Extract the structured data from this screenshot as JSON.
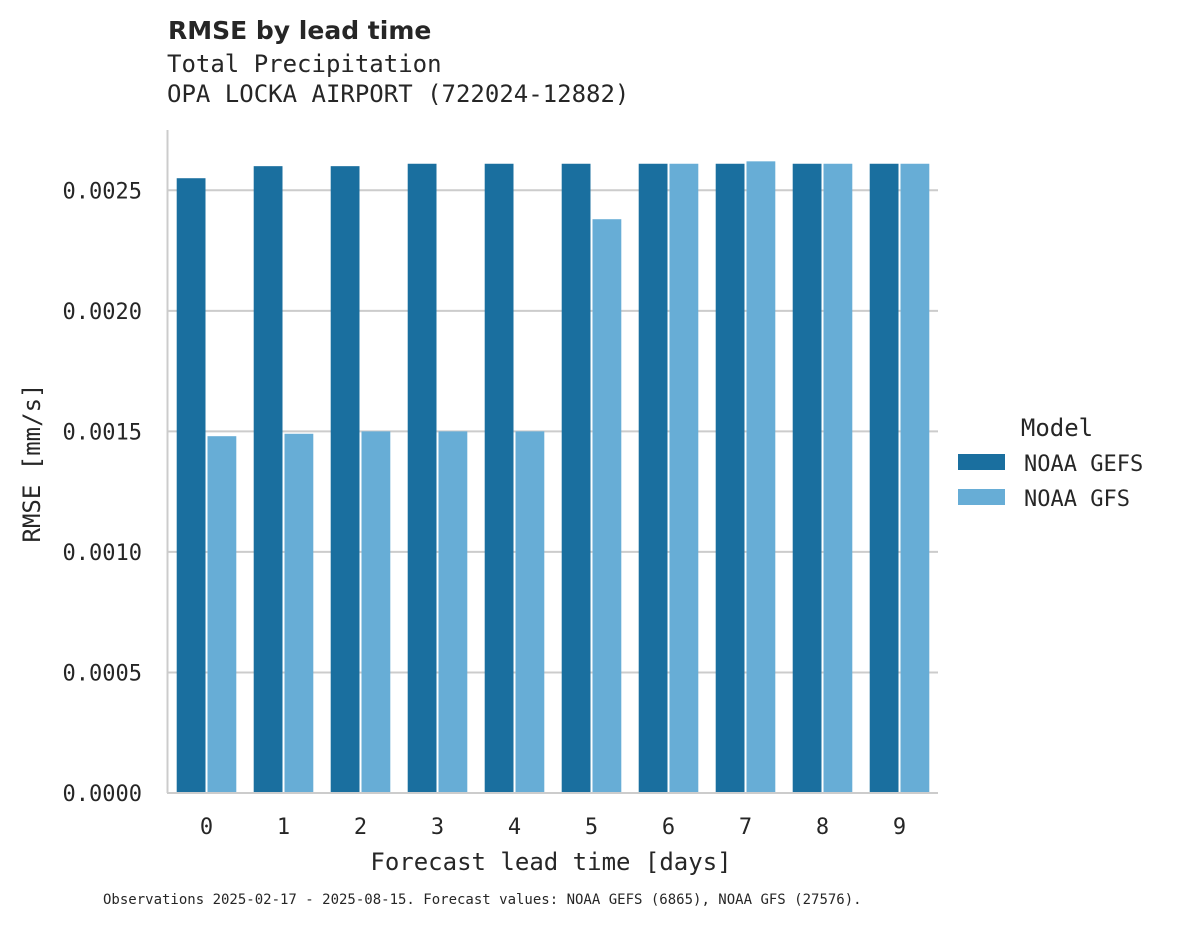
{
  "chart_data": {
    "type": "bar",
    "title": "RMSE by lead time",
    "subtitle": [
      "Total Precipitation",
      "OPA LOCKA AIRPORT (722024-12882)"
    ],
    "xlabel": "Forecast lead time [days]",
    "ylabel": "RMSE [mm/s]",
    "categories": [
      "0",
      "1",
      "2",
      "3",
      "4",
      "5",
      "6",
      "7",
      "8",
      "9"
    ],
    "ylim": [
      0,
      0.00275
    ],
    "yticks": [
      "0.0000",
      "0.0005",
      "0.0010",
      "0.0015",
      "0.0020",
      "0.0025"
    ],
    "ytick_values": [
      0,
      0.0005,
      0.001,
      0.0015,
      0.002,
      0.0025
    ],
    "grid": "horizontal",
    "legend": {
      "title": "Model",
      "position": "right"
    },
    "series": [
      {
        "name": "NOAA GEFS",
        "color": "#1a6f9f",
        "values": [
          0.00255,
          0.0026,
          0.0026,
          0.00261,
          0.00261,
          0.00261,
          0.00261,
          0.00261,
          0.00261,
          0.00261
        ]
      },
      {
        "name": "NOAA GFS",
        "color": "#67add6",
        "values": [
          0.00148,
          0.00149,
          0.0015,
          0.0015,
          0.0015,
          0.00238,
          0.00261,
          0.00262,
          0.00261,
          0.00261
        ]
      }
    ],
    "footnote": "Observations 2025-02-17 - 2025-08-15. Forecast values: NOAA GEFS (6865), NOAA GFS (27576)."
  }
}
